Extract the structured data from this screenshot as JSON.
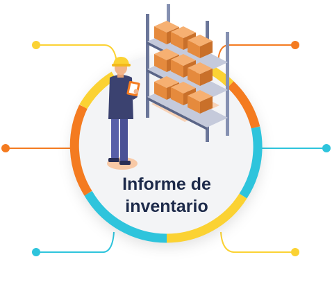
{
  "title": {
    "line1": "Informe de",
    "line2": "inventario"
  },
  "colors": {
    "orange": "#f47b20",
    "cyan": "#2ec4dc",
    "yellow": "#fbd233",
    "navy": "#1d2a4a",
    "circle_bg": "#f3f4f6"
  },
  "icons": [
    "warehouse-worker-illustration",
    "storage-shelf-illustration",
    "box-icon",
    "clipboard-icon",
    "hard-hat-icon"
  ]
}
